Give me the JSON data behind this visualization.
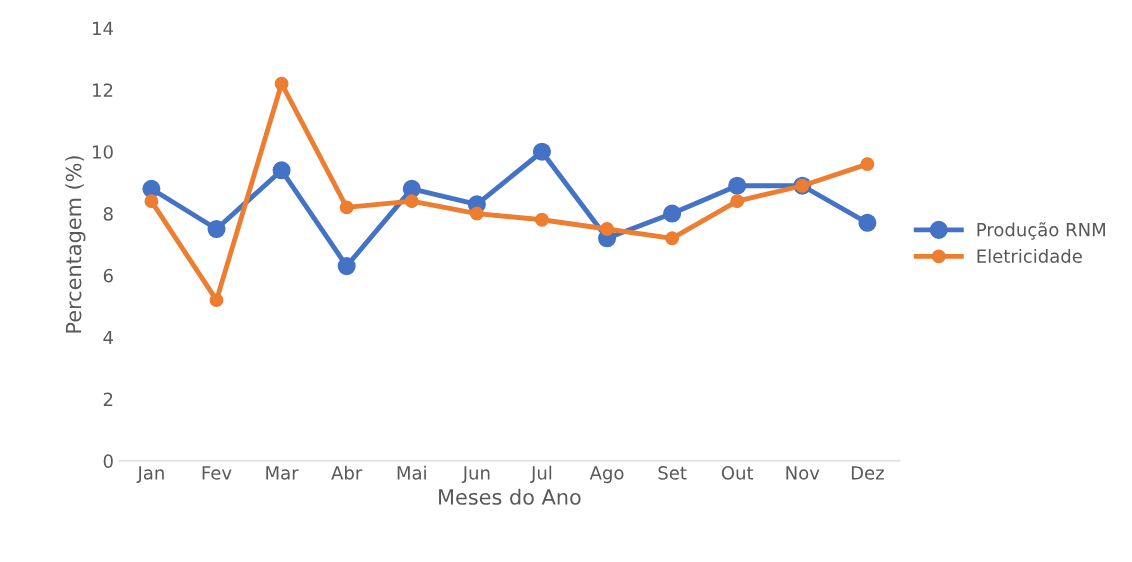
{
  "chart_data": {
    "type": "line",
    "xlabel": "Meses do Ano",
    "ylabel": "Percentagem (%)",
    "categories": [
      "Jan",
      "Fev",
      "Mar",
      "Abr",
      "Mai",
      "Jun",
      "Jul",
      "Ago",
      "Set",
      "Out",
      "Nov",
      "Dez"
    ],
    "series": [
      {
        "name": "Produção RNM",
        "color": "#4472c4",
        "values": [
          8.8,
          7.5,
          9.4,
          6.3,
          8.8,
          8.3,
          10.0,
          7.2,
          8.0,
          8.9,
          8.9,
          7.7
        ]
      },
      {
        "name": "Eletricidade",
        "color": "#ed7d31",
        "values": [
          8.4,
          5.2,
          12.2,
          8.2,
          8.4,
          8.0,
          7.8,
          7.5,
          7.2,
          8.4,
          8.9,
          9.6
        ]
      }
    ],
    "ylim": [
      0,
      14
    ],
    "yticks": [
      0,
      2,
      4,
      6,
      8,
      10,
      12,
      14
    ],
    "grid": false,
    "legend": "right",
    "marker": "circle",
    "line_style": "solid"
  }
}
